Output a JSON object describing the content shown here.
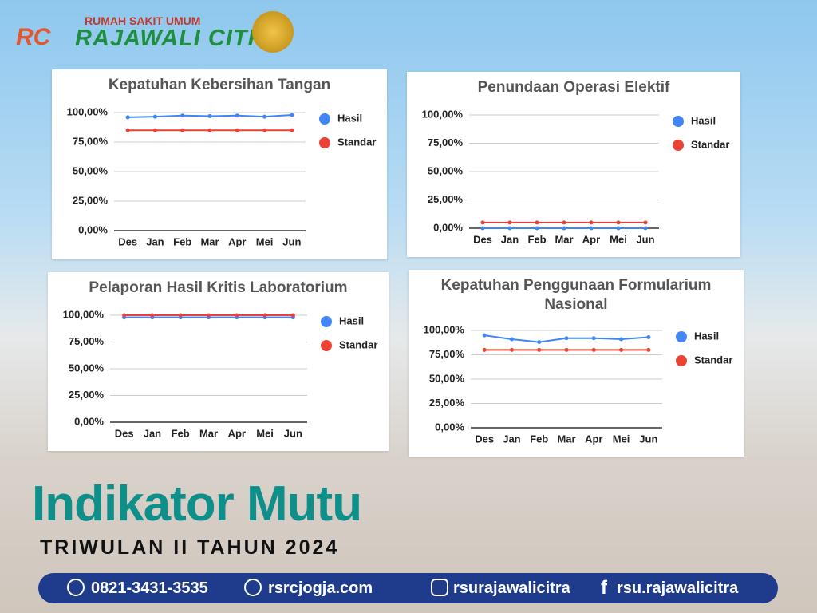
{
  "header": {
    "subtitle": "RUMAH SAKIT UMUM",
    "name": "RAJAWALI CITRA",
    "logo": "RC"
  },
  "chart_data": [
    {
      "type": "line",
      "title": "Kepatuhan Kebersihan Tangan",
      "categories": [
        "Des",
        "Jan",
        "Feb",
        "Mar",
        "Apr",
        "Mei",
        "Jun"
      ],
      "series": [
        {
          "name": "Hasil",
          "color": "#4285f4",
          "values": [
            96,
            96.5,
            97.5,
            97,
            97.5,
            96.5,
            98
          ]
        },
        {
          "name": "Standar",
          "color": "#ea4335",
          "values": [
            85,
            85,
            85,
            85,
            85,
            85,
            85
          ]
        }
      ],
      "ylim": [
        0,
        100
      ],
      "yticks": [
        {
          "value": 0,
          "label": "0,00%"
        },
        {
          "value": 25,
          "label": "25,00%"
        },
        {
          "value": 50,
          "label": "50,00%"
        },
        {
          "value": 75,
          "label": "75,00%"
        },
        {
          "value": 100,
          "label": "100,00%"
        }
      ],
      "grid": true,
      "legend": "right"
    },
    {
      "type": "line",
      "title": "Penundaan Operasi Elektif",
      "categories": [
        "Des",
        "Jan",
        "Feb",
        "Mar",
        "Apr",
        "Mei",
        "Jun"
      ],
      "series": [
        {
          "name": "Hasil",
          "color": "#4285f4",
          "values": [
            0,
            0,
            0,
            0,
            0,
            0,
            0
          ]
        },
        {
          "name": "Standar",
          "color": "#ea4335",
          "values": [
            5,
            5,
            5,
            5,
            5,
            5,
            5
          ]
        }
      ],
      "ylim": [
        0,
        100
      ],
      "yticks": [
        {
          "value": 0,
          "label": "0,00%"
        },
        {
          "value": 25,
          "label": "25,00%"
        },
        {
          "value": 50,
          "label": "50,00%"
        },
        {
          "value": 75,
          "label": "75,00%"
        },
        {
          "value": 100,
          "label": "100,00%"
        }
      ],
      "grid": true,
      "legend": "right"
    },
    {
      "type": "line",
      "title": "Pelaporan Hasil Kritis Laboratorium",
      "categories": [
        "Des",
        "Jan",
        "Feb",
        "Mar",
        "Apr",
        "Mei",
        "Jun"
      ],
      "series": [
        {
          "name": "Hasil",
          "color": "#4285f4",
          "values": [
            98,
            98,
            98,
            98,
            98,
            98,
            98
          ]
        },
        {
          "name": "Standar",
          "color": "#ea4335",
          "values": [
            100,
            100,
            100,
            100,
            100,
            100,
            100
          ]
        }
      ],
      "ylim": [
        0,
        100
      ],
      "yticks": [
        {
          "value": 0,
          "label": "0,00%"
        },
        {
          "value": 25,
          "label": "25,00%"
        },
        {
          "value": 50,
          "label": "50,00%"
        },
        {
          "value": 75,
          "label": "75,00%"
        },
        {
          "value": 100,
          "label": "100,00%"
        }
      ],
      "grid": true,
      "legend": "right"
    },
    {
      "type": "line",
      "title": "Kepatuhan Penggunaan Formularium Nasional",
      "categories": [
        "Des",
        "Jan",
        "Feb",
        "Mar",
        "Apr",
        "Mei",
        "Jun"
      ],
      "series": [
        {
          "name": "Hasil",
          "color": "#4285f4",
          "values": [
            95,
            91,
            88,
            92,
            92,
            91,
            93
          ]
        },
        {
          "name": "Standar",
          "color": "#ea4335",
          "values": [
            80,
            80,
            80,
            80,
            80,
            80,
            80
          ]
        }
      ],
      "ylim": [
        0,
        100
      ],
      "yticks": [
        {
          "value": 0,
          "label": "0,00%"
        },
        {
          "value": 25,
          "label": "25,00%"
        },
        {
          "value": 50,
          "label": "50,00%"
        },
        {
          "value": 75,
          "label": "75,00%"
        },
        {
          "value": 100,
          "label": "100,00%"
        }
      ],
      "grid": true,
      "legend": "right"
    }
  ],
  "headline": {
    "title": "Indikator Mutu",
    "subtitle": "TRIWULAN II TAHUN 2024"
  },
  "footer": {
    "phone": "0821-3431-3535",
    "web": "rsrcjogja.com",
    "instagram": "rsurajawalicitra",
    "facebook": "rsu.rajawalicitra"
  }
}
